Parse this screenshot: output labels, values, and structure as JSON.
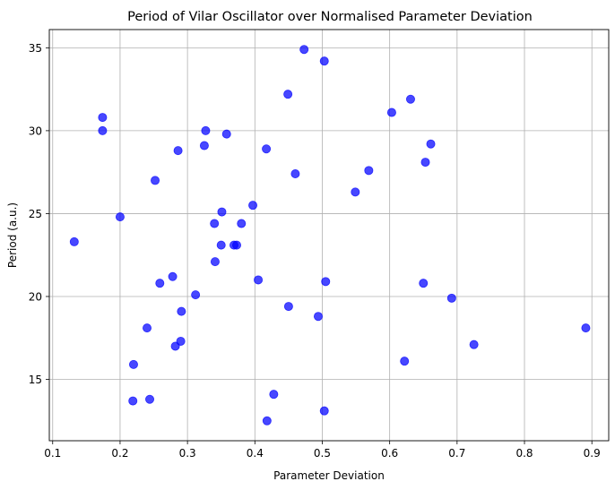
{
  "chart_data": {
    "type": "scatter",
    "title": "Period of Vilar Oscillator over Normalised Parameter Deviation",
    "xlabel": "Parameter Deviation",
    "ylabel": "Period (a.u.)",
    "xlim": [
      0.095,
      0.925
    ],
    "ylim": [
      11.3,
      36.1
    ],
    "xticks": [
      0.1,
      0.2,
      0.3,
      0.4,
      0.5,
      0.6,
      0.7,
      0.8,
      0.9
    ],
    "xtick_labels": [
      "0.1",
      "0.2",
      "0.3",
      "0.4",
      "0.5",
      "0.6",
      "0.7",
      "0.8",
      "0.9"
    ],
    "yticks": [
      15,
      20,
      25,
      30,
      35
    ],
    "ytick_labels": [
      "15",
      "20",
      "25",
      "30",
      "35"
    ],
    "grid": true,
    "marker_color": "#0000ff",
    "marker_alpha": 0.72,
    "x": [
      0.473,
      0.503,
      0.449,
      0.631,
      0.603,
      0.174,
      0.174,
      0.327,
      0.358,
      0.661,
      0.325,
      0.417,
      0.286,
      0.653,
      0.569,
      0.46,
      0.252,
      0.549,
      0.351,
      0.397,
      0.2,
      0.34,
      0.38,
      0.132,
      0.35,
      0.369,
      0.373,
      0.278,
      0.341,
      0.405,
      0.505,
      0.259,
      0.65,
      0.312,
      0.692,
      0.45,
      0.291,
      0.494,
      0.24,
      0.891,
      0.29,
      0.725,
      0.282,
      0.622,
      0.22,
      0.428,
      0.244,
      0.219,
      0.503,
      0.418
    ],
    "y": [
      34.9,
      34.2,
      32.2,
      31.9,
      31.1,
      30.8,
      30.0,
      30.0,
      29.8,
      29.2,
      29.1,
      28.9,
      28.8,
      28.1,
      27.6,
      27.4,
      27.0,
      26.3,
      25.1,
      25.5,
      24.8,
      24.4,
      24.4,
      23.3,
      23.1,
      23.1,
      23.1,
      21.2,
      22.1,
      21.0,
      20.9,
      20.8,
      20.8,
      20.1,
      19.9,
      19.4,
      19.1,
      18.8,
      18.1,
      18.1,
      17.3,
      17.1,
      17.0,
      16.1,
      15.9,
      14.1,
      13.8,
      13.7,
      13.1,
      12.5
    ]
  }
}
